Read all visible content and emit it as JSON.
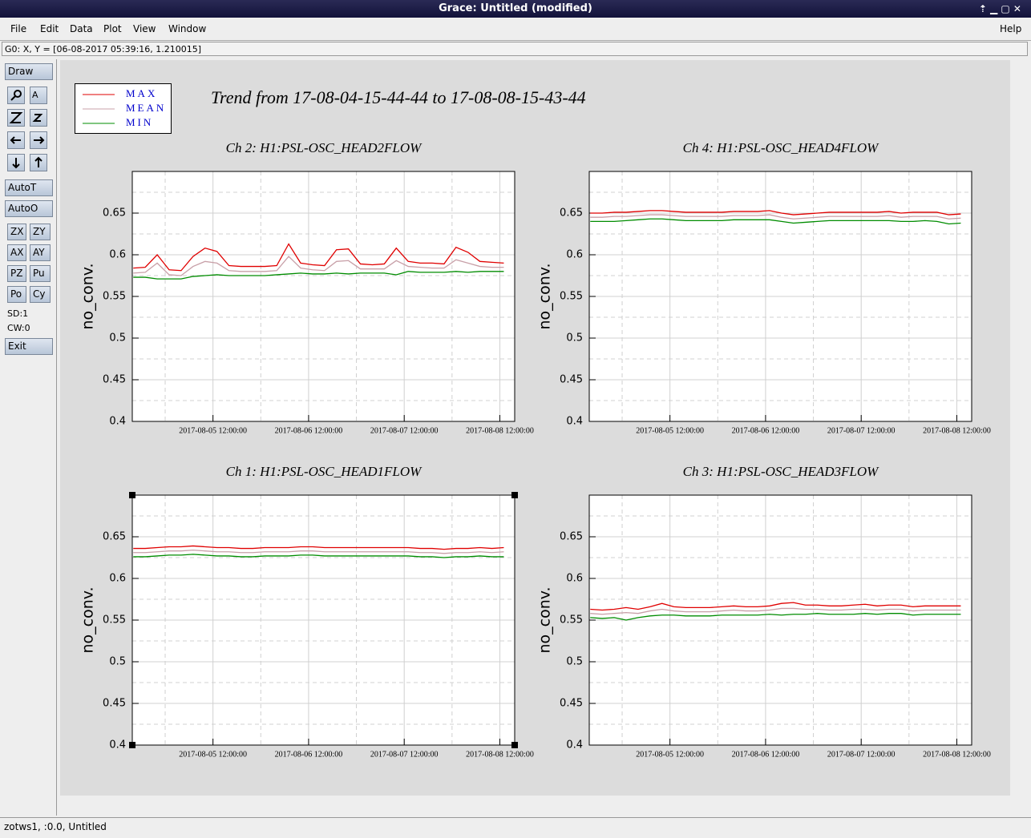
{
  "window": {
    "title": "Grace: Untitled (modified)",
    "menu": [
      "File",
      "Edit",
      "Data",
      "Plot",
      "View",
      "Window"
    ],
    "help": "Help",
    "status": "G0: X, Y = [06-08-2017 05:39:16, 1.210015]",
    "toolbar": {
      "buttons": [
        "Draw",
        "AutoT",
        "AutoO",
        "ZX",
        "ZY",
        "AX",
        "AY",
        "PZ",
        "Pu",
        "Po",
        "Cy",
        "Exit"
      ],
      "info": [
        "SD:1",
        "CW:0"
      ]
    },
    "footer": "zotws1, :0.0, Untitled"
  },
  "figure_title": "Trend from 17-08-04-15-44-44 to 17-08-08-15-43-44",
  "chart_data": [
    {
      "type": "line",
      "title": "Ch 2: H1:PSL-OSC_HEAD2FLOW",
      "y_label": "no_conv.",
      "x": [
        "2017-08-04 16:00:00",
        "2017-08-04 19:00:00",
        "2017-08-04 22:00:00",
        "2017-08-05 01:00:00",
        "2017-08-05 04:00:00",
        "2017-08-05 07:00:00",
        "2017-08-05 10:00:00",
        "2017-08-05 13:00:00",
        "2017-08-05 16:00:00",
        "2017-08-05 19:00:00",
        "2017-08-05 22:00:00",
        "2017-08-06 01:00:00",
        "2017-08-06 04:00:00",
        "2017-08-06 07:00:00",
        "2017-08-06 10:00:00",
        "2017-08-06 13:00:00",
        "2017-08-06 16:00:00",
        "2017-08-06 19:00:00",
        "2017-08-06 22:00:00",
        "2017-08-07 01:00:00",
        "2017-08-07 04:00:00",
        "2017-08-07 07:00:00",
        "2017-08-07 10:00:00",
        "2017-08-07 13:00:00",
        "2017-08-07 16:00:00",
        "2017-08-07 19:00:00",
        "2017-08-07 22:00:00",
        "2017-08-08 01:00:00",
        "2017-08-08 04:00:00",
        "2017-08-08 07:00:00",
        "2017-08-08 10:00:00",
        "2017-08-08 13:00:00"
      ],
      "series": [
        {
          "name": "MAX",
          "color": "#e00000",
          "values": [
            0.584,
            0.585,
            0.6,
            0.582,
            0.581,
            0.598,
            0.608,
            0.604,
            0.587,
            0.586,
            0.586,
            0.586,
            0.587,
            0.613,
            0.59,
            0.588,
            0.587,
            0.606,
            0.607,
            0.589,
            0.588,
            0.589,
            0.608,
            0.592,
            0.59,
            0.59,
            0.589,
            0.609,
            0.603,
            0.592,
            0.591,
            0.59
          ]
        },
        {
          "name": "MEAN",
          "color": "#c8a0a8",
          "values": [
            0.578,
            0.579,
            0.59,
            0.576,
            0.575,
            0.586,
            0.592,
            0.59,
            0.581,
            0.58,
            0.58,
            0.58,
            0.581,
            0.598,
            0.584,
            0.582,
            0.581,
            0.592,
            0.593,
            0.583,
            0.583,
            0.583,
            0.593,
            0.586,
            0.585,
            0.584,
            0.584,
            0.594,
            0.59,
            0.586,
            0.585,
            0.585
          ]
        },
        {
          "name": "MIN",
          "color": "#008c00",
          "values": [
            0.573,
            0.573,
            0.571,
            0.571,
            0.571,
            0.574,
            0.575,
            0.576,
            0.575,
            0.575,
            0.575,
            0.575,
            0.576,
            0.577,
            0.578,
            0.577,
            0.577,
            0.578,
            0.577,
            0.578,
            0.578,
            0.578,
            0.576,
            0.58,
            0.579,
            0.579,
            0.579,
            0.58,
            0.579,
            0.58,
            0.58,
            0.58
          ]
        }
      ],
      "xlim": [
        "2017-08-04 15:44:44",
        "2017-08-08 15:43:44"
      ],
      "xticks": [
        "2017-08-05 12:00:00",
        "2017-08-06 12:00:00",
        "2017-08-07 12:00:00",
        "2017-08-08 12:00:00"
      ],
      "xminorticks": [
        "2017-08-05 00:00:00",
        "2017-08-06 00:00:00",
        "2017-08-07 00:00:00",
        "2017-08-08 00:00:00"
      ],
      "ylim": [
        0.4,
        0.7
      ],
      "yticks": [
        0.4,
        0.45,
        0.5,
        0.55,
        0.6,
        0.65
      ],
      "yminorticks": [
        0.425,
        0.475,
        0.525,
        0.575,
        0.625,
        0.675
      ],
      "grid": true
    },
    {
      "type": "line",
      "title": "Ch 4: H1:PSL-OSC_HEAD4FLOW",
      "y_label": "no_conv.",
      "x": [
        "2017-08-04 16:00:00",
        "2017-08-04 19:00:00",
        "2017-08-04 22:00:00",
        "2017-08-05 01:00:00",
        "2017-08-05 04:00:00",
        "2017-08-05 07:00:00",
        "2017-08-05 10:00:00",
        "2017-08-05 13:00:00",
        "2017-08-05 16:00:00",
        "2017-08-05 19:00:00",
        "2017-08-05 22:00:00",
        "2017-08-06 01:00:00",
        "2017-08-06 04:00:00",
        "2017-08-06 07:00:00",
        "2017-08-06 10:00:00",
        "2017-08-06 13:00:00",
        "2017-08-06 16:00:00",
        "2017-08-06 19:00:00",
        "2017-08-06 22:00:00",
        "2017-08-07 01:00:00",
        "2017-08-07 04:00:00",
        "2017-08-07 07:00:00",
        "2017-08-07 10:00:00",
        "2017-08-07 13:00:00",
        "2017-08-07 16:00:00",
        "2017-08-07 19:00:00",
        "2017-08-07 22:00:00",
        "2017-08-08 01:00:00",
        "2017-08-08 04:00:00",
        "2017-08-08 07:00:00",
        "2017-08-08 10:00:00",
        "2017-08-08 13:00:00"
      ],
      "series": [
        {
          "name": "MAX",
          "color": "#e00000",
          "values": [
            0.65,
            0.65,
            0.651,
            0.651,
            0.652,
            0.653,
            0.653,
            0.652,
            0.651,
            0.651,
            0.651,
            0.651,
            0.652,
            0.652,
            0.652,
            0.653,
            0.65,
            0.648,
            0.649,
            0.65,
            0.651,
            0.651,
            0.651,
            0.651,
            0.651,
            0.652,
            0.65,
            0.651,
            0.651,
            0.651,
            0.648,
            0.649
          ]
        },
        {
          "name": "MEAN",
          "color": "#c8a0a8",
          "values": [
            0.645,
            0.645,
            0.646,
            0.646,
            0.647,
            0.648,
            0.648,
            0.647,
            0.646,
            0.646,
            0.646,
            0.646,
            0.647,
            0.647,
            0.647,
            0.648,
            0.645,
            0.643,
            0.644,
            0.645,
            0.646,
            0.646,
            0.646,
            0.646,
            0.646,
            0.647,
            0.645,
            0.646,
            0.646,
            0.646,
            0.643,
            0.644
          ]
        },
        {
          "name": "MIN",
          "color": "#008c00",
          "values": [
            0.64,
            0.64,
            0.64,
            0.641,
            0.642,
            0.643,
            0.643,
            0.642,
            0.641,
            0.641,
            0.641,
            0.641,
            0.642,
            0.642,
            0.642,
            0.642,
            0.64,
            0.638,
            0.639,
            0.64,
            0.641,
            0.641,
            0.641,
            0.641,
            0.641,
            0.641,
            0.64,
            0.64,
            0.641,
            0.64,
            0.637,
            0.638
          ]
        }
      ],
      "xlim": [
        "2017-08-04 15:44:44",
        "2017-08-08 15:43:44"
      ],
      "xticks": [
        "2017-08-05 12:00:00",
        "2017-08-06 12:00:00",
        "2017-08-07 12:00:00",
        "2017-08-08 12:00:00"
      ],
      "xminorticks": [
        "2017-08-05 00:00:00",
        "2017-08-06 00:00:00",
        "2017-08-07 00:00:00",
        "2017-08-08 00:00:00"
      ],
      "ylim": [
        0.4,
        0.7
      ],
      "yticks": [
        0.4,
        0.45,
        0.5,
        0.55,
        0.6,
        0.65
      ],
      "yminorticks": [
        0.425,
        0.475,
        0.525,
        0.575,
        0.625,
        0.675
      ],
      "grid": true
    },
    {
      "type": "line",
      "title": "Ch 1: H1:PSL-OSC_HEAD1FLOW",
      "y_label": "no_conv.",
      "x": [
        "2017-08-04 16:00:00",
        "2017-08-04 19:00:00",
        "2017-08-04 22:00:00",
        "2017-08-05 01:00:00",
        "2017-08-05 04:00:00",
        "2017-08-05 07:00:00",
        "2017-08-05 10:00:00",
        "2017-08-05 13:00:00",
        "2017-08-05 16:00:00",
        "2017-08-05 19:00:00",
        "2017-08-05 22:00:00",
        "2017-08-06 01:00:00",
        "2017-08-06 04:00:00",
        "2017-08-06 07:00:00",
        "2017-08-06 10:00:00",
        "2017-08-06 13:00:00",
        "2017-08-06 16:00:00",
        "2017-08-06 19:00:00",
        "2017-08-06 22:00:00",
        "2017-08-07 01:00:00",
        "2017-08-07 04:00:00",
        "2017-08-07 07:00:00",
        "2017-08-07 10:00:00",
        "2017-08-07 13:00:00",
        "2017-08-07 16:00:00",
        "2017-08-07 19:00:00",
        "2017-08-07 22:00:00",
        "2017-08-08 01:00:00",
        "2017-08-08 04:00:00",
        "2017-08-08 07:00:00",
        "2017-08-08 10:00:00",
        "2017-08-08 13:00:00"
      ],
      "series": [
        {
          "name": "MAX",
          "color": "#e00000",
          "values": [
            0.636,
            0.636,
            0.637,
            0.638,
            0.638,
            0.639,
            0.638,
            0.637,
            0.637,
            0.636,
            0.636,
            0.637,
            0.637,
            0.637,
            0.638,
            0.638,
            0.637,
            0.637,
            0.637,
            0.637,
            0.637,
            0.637,
            0.637,
            0.637,
            0.636,
            0.636,
            0.635,
            0.636,
            0.636,
            0.637,
            0.636,
            0.637
          ]
        },
        {
          "name": "MEAN",
          "color": "#c8a0a8",
          "values": [
            0.631,
            0.631,
            0.632,
            0.633,
            0.633,
            0.634,
            0.633,
            0.632,
            0.632,
            0.631,
            0.631,
            0.632,
            0.632,
            0.632,
            0.633,
            0.633,
            0.632,
            0.632,
            0.632,
            0.632,
            0.632,
            0.632,
            0.632,
            0.632,
            0.631,
            0.631,
            0.63,
            0.631,
            0.631,
            0.632,
            0.631,
            0.632
          ]
        },
        {
          "name": "MIN",
          "color": "#008c00",
          "values": [
            0.626,
            0.626,
            0.627,
            0.628,
            0.628,
            0.629,
            0.628,
            0.627,
            0.627,
            0.626,
            0.626,
            0.627,
            0.627,
            0.627,
            0.628,
            0.628,
            0.627,
            0.627,
            0.627,
            0.627,
            0.627,
            0.627,
            0.627,
            0.627,
            0.626,
            0.626,
            0.625,
            0.626,
            0.626,
            0.627,
            0.626,
            0.626
          ]
        }
      ],
      "xlim": [
        "2017-08-04 15:44:44",
        "2017-08-08 15:43:44"
      ],
      "xticks": [
        "2017-08-05 12:00:00",
        "2017-08-06 12:00:00",
        "2017-08-07 12:00:00",
        "2017-08-08 12:00:00"
      ],
      "xminorticks": [
        "2017-08-05 00:00:00",
        "2017-08-06 00:00:00",
        "2017-08-07 00:00:00",
        "2017-08-08 00:00:00"
      ],
      "ylim": [
        0.4,
        0.7
      ],
      "yticks": [
        0.4,
        0.45,
        0.5,
        0.55,
        0.6,
        0.65
      ],
      "yminorticks": [
        0.425,
        0.475,
        0.525,
        0.575,
        0.625,
        0.675
      ],
      "grid": true
    },
    {
      "type": "line",
      "title": "Ch 3: H1:PSL-OSC_HEAD3FLOW",
      "y_label": "no_conv.",
      "x": [
        "2017-08-04 16:00:00",
        "2017-08-04 19:00:00",
        "2017-08-04 22:00:00",
        "2017-08-05 01:00:00",
        "2017-08-05 04:00:00",
        "2017-08-05 07:00:00",
        "2017-08-05 10:00:00",
        "2017-08-05 13:00:00",
        "2017-08-05 16:00:00",
        "2017-08-05 19:00:00",
        "2017-08-05 22:00:00",
        "2017-08-06 01:00:00",
        "2017-08-06 04:00:00",
        "2017-08-06 07:00:00",
        "2017-08-06 10:00:00",
        "2017-08-06 13:00:00",
        "2017-08-06 16:00:00",
        "2017-08-06 19:00:00",
        "2017-08-06 22:00:00",
        "2017-08-07 01:00:00",
        "2017-08-07 04:00:00",
        "2017-08-07 07:00:00",
        "2017-08-07 10:00:00",
        "2017-08-07 13:00:00",
        "2017-08-07 16:00:00",
        "2017-08-07 19:00:00",
        "2017-08-07 22:00:00",
        "2017-08-08 01:00:00",
        "2017-08-08 04:00:00",
        "2017-08-08 07:00:00",
        "2017-08-08 10:00:00",
        "2017-08-08 13:00:00"
      ],
      "series": [
        {
          "name": "MAX",
          "color": "#e00000",
          "values": [
            0.563,
            0.562,
            0.563,
            0.565,
            0.563,
            0.566,
            0.57,
            0.566,
            0.565,
            0.565,
            0.565,
            0.566,
            0.567,
            0.566,
            0.566,
            0.567,
            0.57,
            0.571,
            0.568,
            0.568,
            0.567,
            0.567,
            0.568,
            0.569,
            0.567,
            0.568,
            0.568,
            0.566,
            0.567,
            0.567,
            0.567,
            0.567
          ]
        },
        {
          "name": "MEAN",
          "color": "#c8a0a8",
          "values": [
            0.558,
            0.557,
            0.558,
            0.559,
            0.558,
            0.561,
            0.563,
            0.561,
            0.56,
            0.56,
            0.56,
            0.561,
            0.562,
            0.561,
            0.561,
            0.562,
            0.564,
            0.564,
            0.563,
            0.563,
            0.562,
            0.562,
            0.563,
            0.563,
            0.562,
            0.563,
            0.563,
            0.561,
            0.562,
            0.562,
            0.562,
            0.562
          ]
        },
        {
          "name": "MIN",
          "color": "#008c00",
          "values": [
            0.553,
            0.552,
            0.553,
            0.55,
            0.553,
            0.555,
            0.556,
            0.556,
            0.555,
            0.555,
            0.555,
            0.556,
            0.556,
            0.556,
            0.556,
            0.557,
            0.556,
            0.557,
            0.557,
            0.558,
            0.557,
            0.557,
            0.557,
            0.558,
            0.557,
            0.558,
            0.558,
            0.556,
            0.557,
            0.557,
            0.557,
            0.557
          ]
        }
      ],
      "xlim": [
        "2017-08-04 15:44:44",
        "2017-08-08 15:43:44"
      ],
      "xticks": [
        "2017-08-05 12:00:00",
        "2017-08-06 12:00:00",
        "2017-08-07 12:00:00",
        "2017-08-08 12:00:00"
      ],
      "xminorticks": [
        "2017-08-05 00:00:00",
        "2017-08-06 00:00:00",
        "2017-08-07 00:00:00",
        "2017-08-08 00:00:00"
      ],
      "ylim": [
        0.4,
        0.7
      ],
      "yticks": [
        0.4,
        0.45,
        0.5,
        0.55,
        0.6,
        0.65
      ],
      "yminorticks": [
        0.425,
        0.475,
        0.525,
        0.575,
        0.625,
        0.675
      ],
      "grid": true
    }
  ]
}
